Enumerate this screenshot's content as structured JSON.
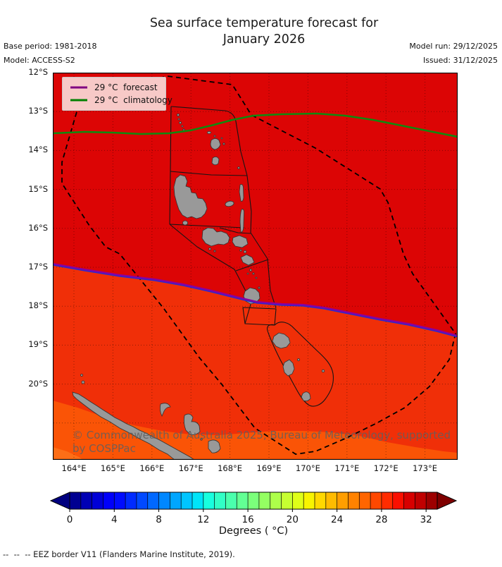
{
  "title": {
    "line1": "Sea surface temperature forecast for",
    "line2": "January 2026"
  },
  "meta": {
    "base_period_label": "Base period: 1981-2018",
    "model_label": "Model: ACCESS-S2",
    "model_run_label": "Model run: 29/12/2025",
    "issued_label": "Issued: 31/12/2025"
  },
  "legend": {
    "items": [
      {
        "label": "29 °C  forecast",
        "color": "#800080"
      },
      {
        "label": "29 °C  climatology",
        "color": "#008000"
      }
    ]
  },
  "map": {
    "lat_labels": [
      "12°S",
      "13°S",
      "14°S",
      "15°S",
      "16°S",
      "17°S",
      "18°S",
      "19°S",
      "20°S"
    ],
    "lon_labels": [
      "164°E",
      "165°E",
      "166°E",
      "167°E",
      "168°E",
      "169°E",
      "170°E",
      "171°E",
      "172°E",
      "173°E"
    ],
    "watermark": {
      "line1": "© Commonwealth of Australia 2025, Bureau of Meteorology, supported",
      "line2": "by COSPPac"
    },
    "colors": {
      "sea_30_31": "#dc0505",
      "sea_29_30": "#f02f08",
      "sea_28_29": "#fa5406",
      "sea_27_28": "#fd6e17",
      "land": "#999999",
      "land_outline": "#333333",
      "eez_border": "#000000",
      "forecast_contour": "#8a00a0",
      "forecast_contour_fringe": "#2a2acc",
      "climatology_contour": "#0f8a0f",
      "grid": "rgba(0,0,0,0.40)"
    }
  },
  "colorbar": {
    "label": "Degrees ( °C)",
    "ticks": [
      0,
      4,
      8,
      12,
      16,
      20,
      24,
      28,
      32
    ],
    "vmin": 0,
    "vmax": 33,
    "under_color": "#00007f",
    "over_color": "#7f0000",
    "colors": [
      "#000091",
      "#0000b4",
      "#0000d7",
      "#0000fa",
      "#000cff",
      "#002bff",
      "#0049ff",
      "#0068ff",
      "#0087ff",
      "#00a6ff",
      "#00c5ff",
      "#00e4f8",
      "#18ffdf",
      "#31ffc6",
      "#4affad",
      "#62ff94",
      "#7bff7b",
      "#94ff62",
      "#adff4a",
      "#c6ff31",
      "#dfff18",
      "#f8f400",
      "#ffd800",
      "#ffbb00",
      "#ff9e00",
      "#ff8200",
      "#ff6500",
      "#ff4800",
      "#ff2c00",
      "#fa0f00",
      "#d70000",
      "#c00000",
      "#9d0000"
    ]
  },
  "caption": {
    "text": "--  --  -- EEZ border V11 (Flanders Marine Institute, 2019)."
  }
}
